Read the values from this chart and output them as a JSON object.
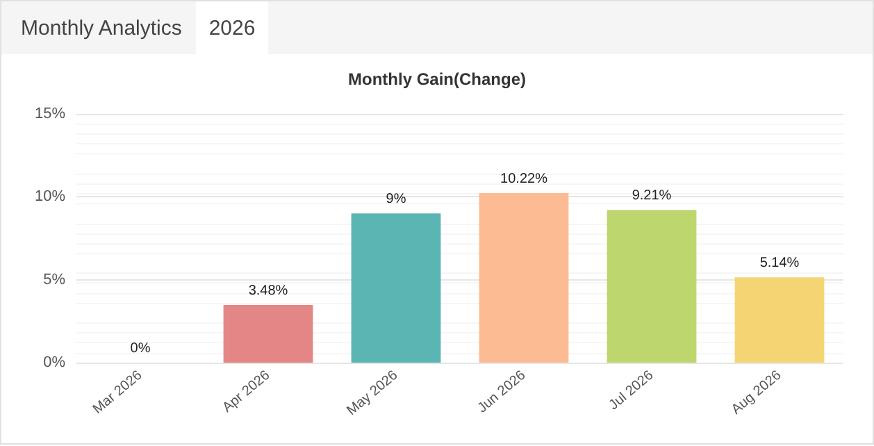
{
  "chart_data": {
    "type": "bar",
    "title": "Monthly Gain(Change)",
    "annotations": [
      "Monthly Analytics",
      "2026"
    ],
    "categories": [
      "Mar 2026",
      "Apr 2026",
      "May 2026",
      "Jun 2026",
      "Jul 2026",
      "Aug 2026"
    ],
    "values": [
      0,
      3.48,
      9,
      10.22,
      9.21,
      5.14
    ],
    "colors": [
      "#e48686",
      "#e48686",
      "#5bb5b3",
      "#fdbb94",
      "#bdd76e",
      "#f5d474"
    ],
    "value_labels": [
      "0%",
      "3.48%",
      "9%",
      "10.22%",
      "9.21%",
      "5.14%"
    ],
    "ylim": [
      0,
      15
    ],
    "yticks": [
      {
        "value": 0,
        "label": "0%"
      },
      {
        "value": 5,
        "label": "5%"
      },
      {
        "value": 10,
        "label": "10%"
      },
      {
        "value": 15,
        "label": "15%"
      }
    ],
    "grid": true
  }
}
